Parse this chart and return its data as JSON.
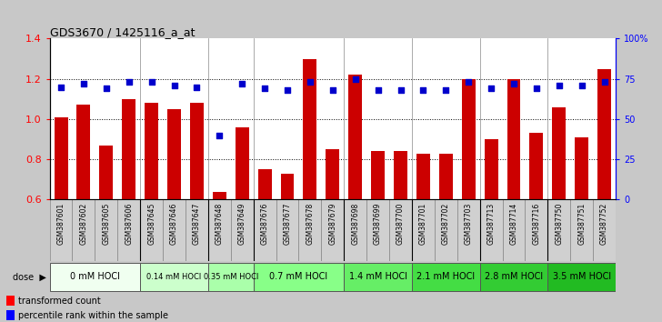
{
  "title": "GDS3670 / 1425116_a_at",
  "samples": [
    "GSM387601",
    "GSM387602",
    "GSM387605",
    "GSM387606",
    "GSM387645",
    "GSM387646",
    "GSM387647",
    "GSM387648",
    "GSM387649",
    "GSM387676",
    "GSM387677",
    "GSM387678",
    "GSM387679",
    "GSM387698",
    "GSM387699",
    "GSM387700",
    "GSM387701",
    "GSM387702",
    "GSM387703",
    "GSM387713",
    "GSM387714",
    "GSM387716",
    "GSM387750",
    "GSM387751",
    "GSM387752"
  ],
  "bar_values": [
    1.01,
    1.07,
    0.87,
    1.1,
    1.08,
    1.05,
    1.08,
    0.64,
    0.96,
    0.75,
    0.73,
    1.3,
    0.85,
    1.22,
    0.84,
    0.84,
    0.83,
    0.83,
    1.2,
    0.9,
    1.2,
    0.93,
    1.06,
    0.91,
    1.25
  ],
  "dot_percentiles": [
    70,
    72,
    69,
    73,
    73,
    71,
    70,
    40,
    72,
    69,
    68,
    73,
    68,
    75,
    68,
    68,
    68,
    68,
    73,
    69,
    72,
    69,
    71,
    71,
    73
  ],
  "groups": [
    {
      "label": "0 mM HOCl",
      "start": 0,
      "end": 4,
      "color": "#f0fff0",
      "fontsize": 7
    },
    {
      "label": "0.14 mM HOCl",
      "start": 4,
      "end": 7,
      "color": "#ccffcc",
      "fontsize": 6
    },
    {
      "label": "0.35 mM HOCl",
      "start": 7,
      "end": 9,
      "color": "#aaffaa",
      "fontsize": 6
    },
    {
      "label": "0.7 mM HOCl",
      "start": 9,
      "end": 13,
      "color": "#88ff88",
      "fontsize": 7
    },
    {
      "label": "1.4 mM HOCl",
      "start": 13,
      "end": 16,
      "color": "#66ee66",
      "fontsize": 7
    },
    {
      "label": "2.1 mM HOCl",
      "start": 16,
      "end": 19,
      "color": "#44dd44",
      "fontsize": 7
    },
    {
      "label": "2.8 mM HOCl",
      "start": 19,
      "end": 22,
      "color": "#33cc33",
      "fontsize": 7
    },
    {
      "label": "3.5 mM HOCl",
      "start": 22,
      "end": 25,
      "color": "#22bb22",
      "fontsize": 7
    }
  ],
  "ylim": [
    0.6,
    1.4
  ],
  "yticks": [
    0.6,
    0.8,
    1.0,
    1.2,
    1.4
  ],
  "bar_color": "#cc0000",
  "dot_color": "#0000cc",
  "bg_color": "#c8c8c8",
  "plot_bg": "#ffffff",
  "tick_bg": "#d0d0d0"
}
